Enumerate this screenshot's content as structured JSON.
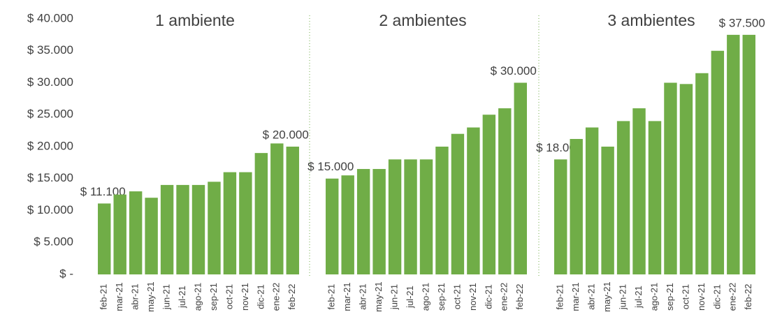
{
  "chart_data": [
    {
      "type": "bar",
      "title": "1 ambiente",
      "color": "#70ad47",
      "categories": [
        "feb-21",
        "mar-21",
        "abr-21",
        "may-21",
        "jun-21",
        "jul-21",
        "ago-21",
        "sep-21",
        "oct-21",
        "nov-21",
        "dic-21",
        "ene-22",
        "feb-22"
      ],
      "values": [
        11100,
        12500,
        13000,
        12000,
        14000,
        14000,
        14000,
        14500,
        16000,
        16000,
        19000,
        20500,
        20000
      ],
      "value_labels": [
        "$ 11.100",
        null,
        null,
        null,
        null,
        null,
        null,
        null,
        null,
        null,
        null,
        null,
        "$ 20.000"
      ],
      "ylim": [
        0,
        40000
      ],
      "yticks": [
        {
          "value": 0,
          "label": "$ -"
        },
        {
          "value": 5000,
          "label": "$ 5.000"
        },
        {
          "value": 10000,
          "label": "$ 10.000"
        },
        {
          "value": 15000,
          "label": "$ 15.000"
        },
        {
          "value": 20000,
          "label": "$ 20.000"
        },
        {
          "value": 25000,
          "label": "$ 25.000"
        },
        {
          "value": 30000,
          "label": "$ 30.000"
        },
        {
          "value": 35000,
          "label": "$ 35.000"
        },
        {
          "value": 40000,
          "label": "$ 40.000"
        }
      ]
    },
    {
      "type": "bar",
      "title": "2 ambientes",
      "color": "#70ad47",
      "categories": [
        "feb-21",
        "mar-21",
        "abr-21",
        "may-21",
        "jun-21",
        "jul-21",
        "ago-21",
        "sep-21",
        "oct-21",
        "nov-21",
        "dic-21",
        "ene-22",
        "feb-22"
      ],
      "values": [
        15000,
        15500,
        16500,
        16500,
        18000,
        18000,
        18000,
        20000,
        22000,
        23000,
        25000,
        26000,
        30000
      ],
      "value_labels": [
        "$ 15.000",
        null,
        null,
        null,
        null,
        null,
        null,
        null,
        null,
        null,
        null,
        null,
        "$ 30.000"
      ],
      "ylim": [
        0,
        40000
      ]
    },
    {
      "type": "bar",
      "title": "3 ambientes",
      "color": "#70ad47",
      "categories": [
        "feb-21",
        "mar-21",
        "abr-21",
        "may-21",
        "jun-21",
        "jul-21",
        "ago-21",
        "sep-21",
        "oct-21",
        "nov-21",
        "dic-21",
        "ene-22",
        "feb-22"
      ],
      "values": [
        18000,
        21200,
        23000,
        20000,
        24000,
        26000,
        24000,
        30000,
        29800,
        31500,
        35000,
        37500,
        37500
      ],
      "value_labels": [
        "$ 18.000",
        null,
        null,
        null,
        null,
        null,
        null,
        null,
        null,
        null,
        null,
        null,
        "$ 37.500"
      ],
      "ylim": [
        0,
        40000
      ]
    }
  ]
}
